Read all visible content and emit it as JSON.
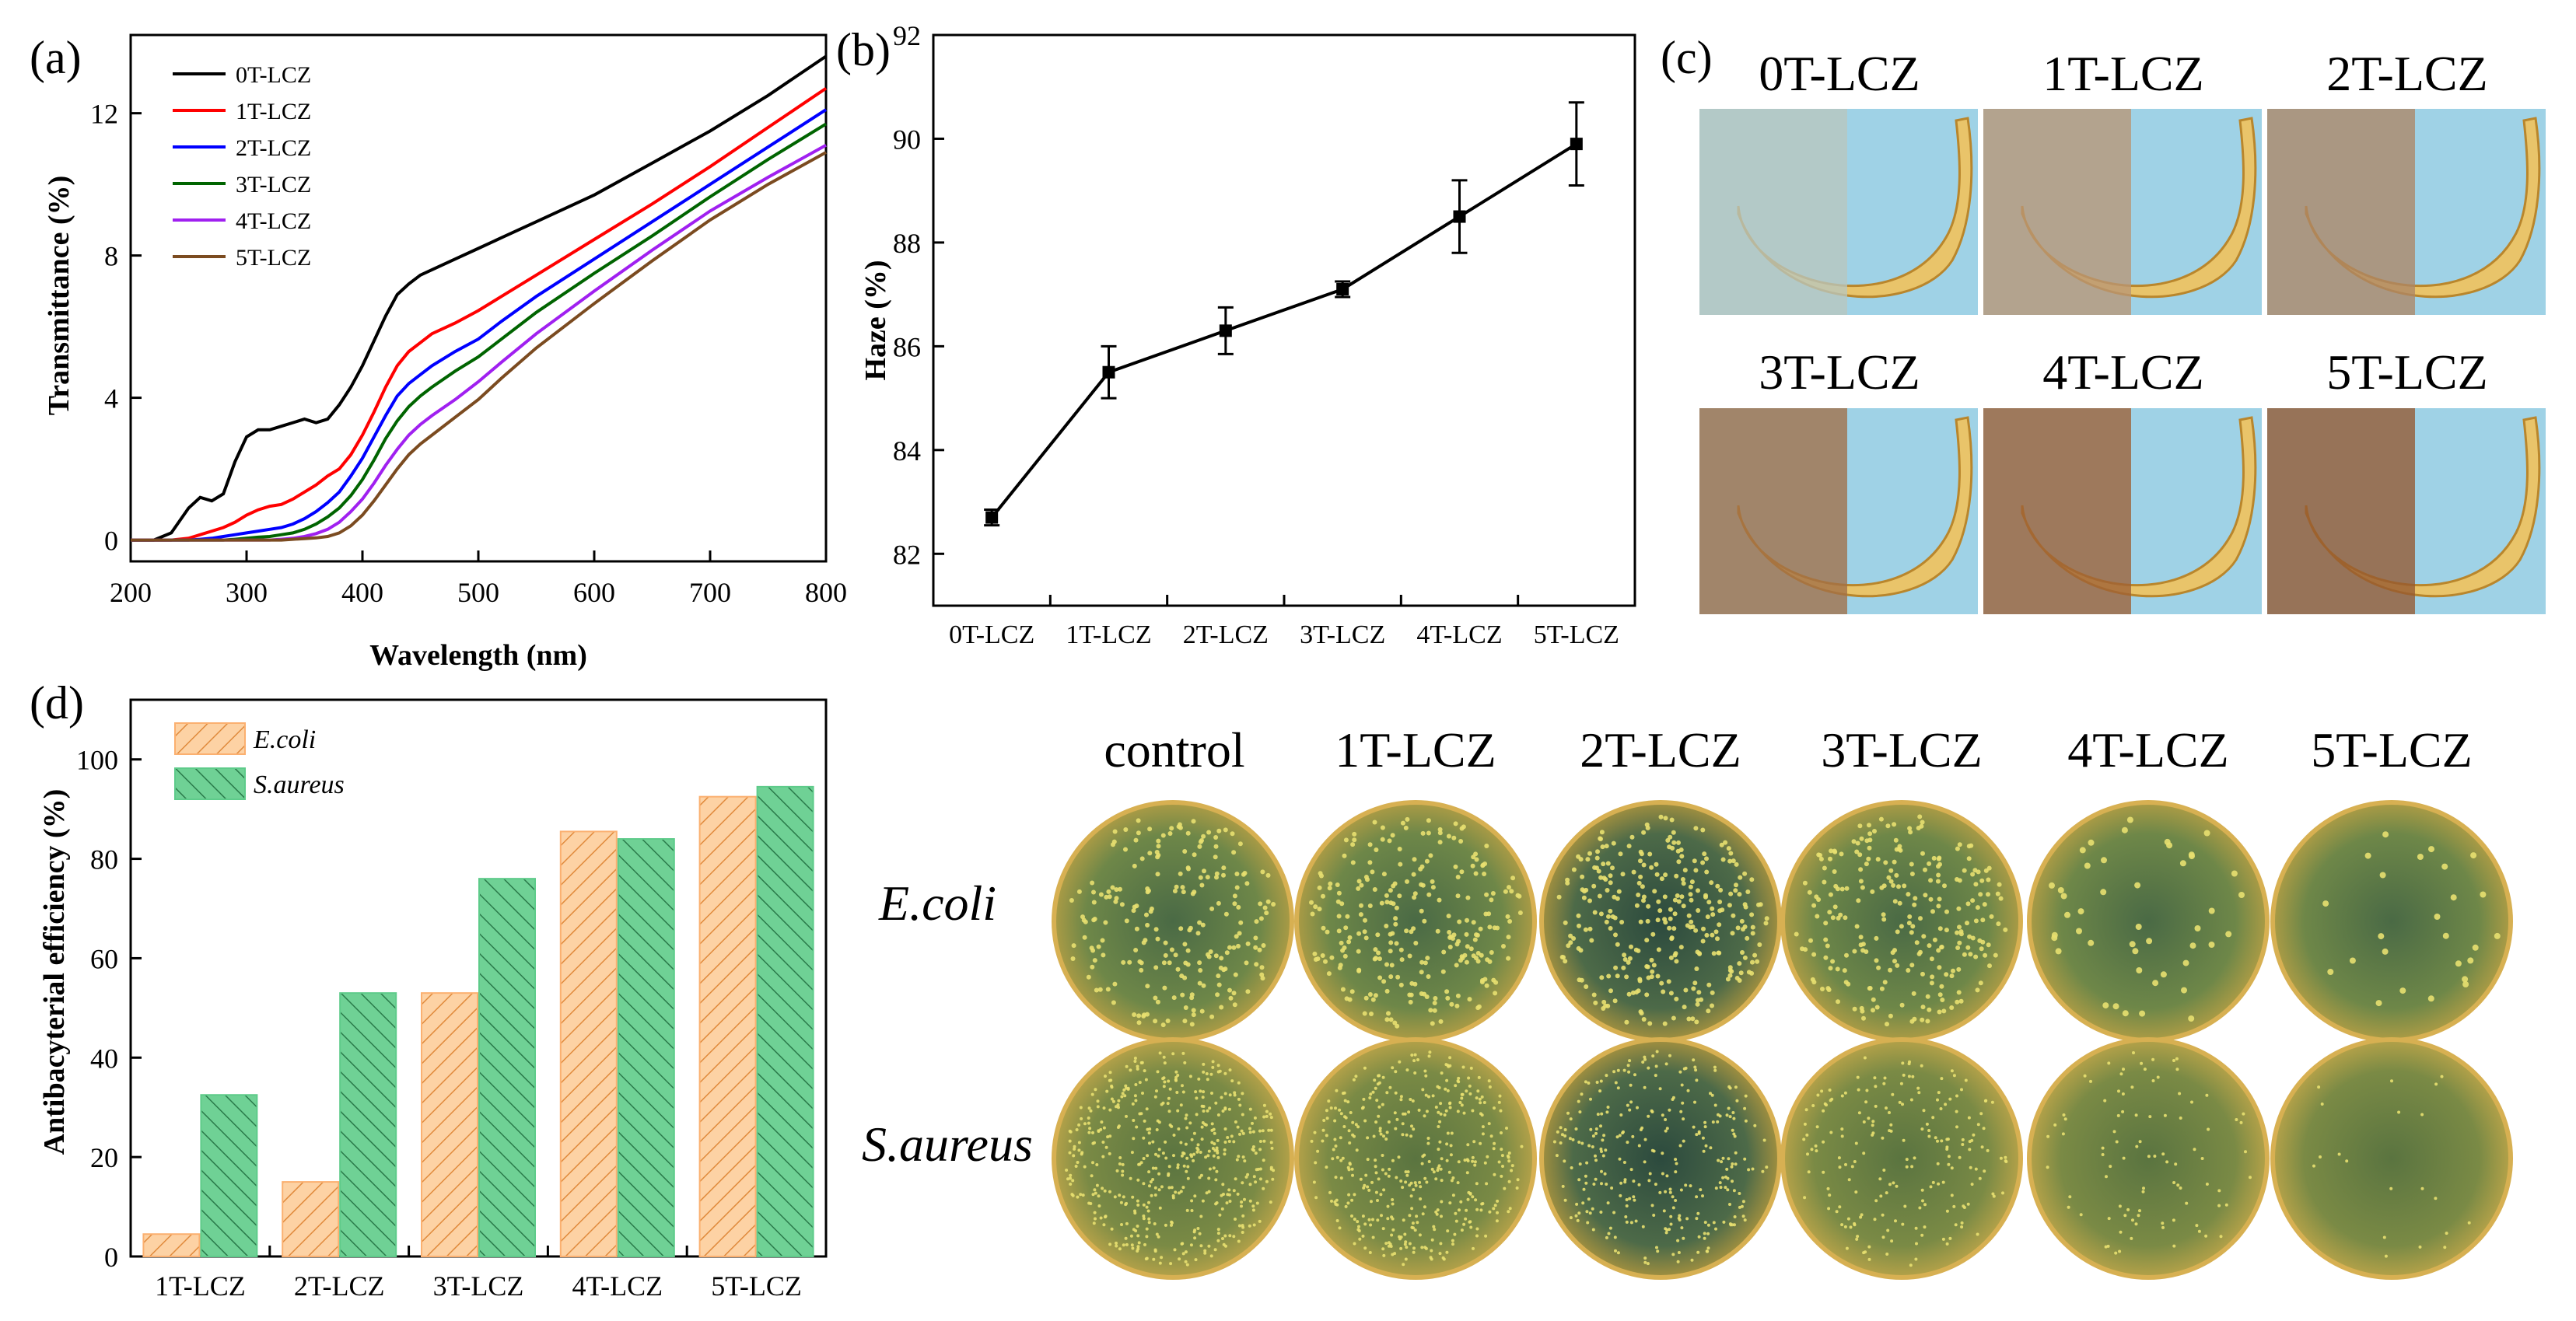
{
  "panels": {
    "a": {
      "tag": "(a)"
    },
    "b": {
      "tag": "(b)"
    },
    "c": {
      "tag": "(c)"
    },
    "d": {
      "tag": "(d)"
    }
  },
  "chart_data": [
    {
      "id": "a",
      "type": "line",
      "xlabel": "Wavelength (nm)",
      "ylabel": "Transmittance (%)",
      "xlim": [
        200,
        800
      ],
      "ylim": [
        -0.6,
        14.2
      ],
      "xticks": [
        200,
        300,
        400,
        500,
        600,
        700,
        800
      ],
      "yticks": [
        0,
        4,
        8,
        12
      ],
      "x": [
        200,
        220,
        235,
        250,
        260,
        270,
        280,
        290,
        300,
        310,
        320,
        330,
        340,
        350,
        360,
        370,
        380,
        390,
        400,
        410,
        420,
        430,
        440,
        450,
        460,
        480,
        500,
        520,
        550,
        600,
        650,
        700,
        750,
        800
      ],
      "series": [
        {
          "name": "0T-LCZ",
          "color": "#000000",
          "values": [
            0,
            0,
            0.2,
            0.9,
            1.2,
            1.1,
            1.3,
            2.2,
            2.9,
            3.1,
            3.1,
            3.2,
            3.3,
            3.4,
            3.3,
            3.4,
            3.8,
            4.3,
            4.9,
            5.6,
            6.3,
            6.9,
            7.2,
            7.45,
            7.6,
            7.9,
            8.2,
            8.5,
            8.95,
            9.7,
            10.6,
            11.5,
            12.5,
            13.6
          ]
        },
        {
          "name": "1T-LCZ",
          "color": "#ff0000",
          "values": [
            0,
            0,
            0,
            0.05,
            0.15,
            0.25,
            0.35,
            0.5,
            0.7,
            0.85,
            0.95,
            1.0,
            1.15,
            1.35,
            1.55,
            1.8,
            2.0,
            2.4,
            2.95,
            3.6,
            4.3,
            4.9,
            5.3,
            5.55,
            5.8,
            6.1,
            6.45,
            6.85,
            7.45,
            8.45,
            9.45,
            10.5,
            11.6,
            12.7
          ]
        },
        {
          "name": "2T-LCZ",
          "color": "#0000ff",
          "values": [
            0,
            0,
            0,
            0,
            0.02,
            0.05,
            0.1,
            0.15,
            0.2,
            0.25,
            0.3,
            0.35,
            0.45,
            0.6,
            0.8,
            1.05,
            1.35,
            1.8,
            2.3,
            2.9,
            3.5,
            4.05,
            4.4,
            4.65,
            4.9,
            5.3,
            5.65,
            6.15,
            6.85,
            7.9,
            8.95,
            10.0,
            11.05,
            12.1
          ]
        },
        {
          "name": "3T-LCZ",
          "color": "#006400",
          "values": [
            0,
            0,
            0,
            0,
            0,
            0,
            0,
            0.02,
            0.05,
            0.08,
            0.1,
            0.15,
            0.2,
            0.3,
            0.45,
            0.65,
            0.9,
            1.25,
            1.7,
            2.25,
            2.85,
            3.35,
            3.75,
            4.05,
            4.3,
            4.75,
            5.15,
            5.65,
            6.4,
            7.5,
            8.55,
            9.65,
            10.7,
            11.7
          ]
        },
        {
          "name": "4T-LCZ",
          "color": "#a020f0",
          "values": [
            0,
            0,
            0,
            0,
            0,
            0,
            0,
            0,
            0,
            0,
            0,
            0.02,
            0.05,
            0.1,
            0.18,
            0.3,
            0.5,
            0.8,
            1.15,
            1.6,
            2.1,
            2.55,
            2.95,
            3.25,
            3.5,
            3.95,
            4.45,
            5.0,
            5.8,
            7.0,
            8.15,
            9.25,
            10.2,
            11.1
          ]
        },
        {
          "name": "5T-LCZ",
          "color": "#7b4b20",
          "values": [
            0,
            0,
            0,
            0,
            0,
            0,
            0,
            0,
            0,
            0,
            0,
            0,
            0.02,
            0.04,
            0.06,
            0.1,
            0.2,
            0.4,
            0.7,
            1.1,
            1.55,
            2.0,
            2.4,
            2.7,
            2.95,
            3.45,
            3.95,
            4.55,
            5.4,
            6.65,
            7.85,
            9.0,
            10.0,
            10.9
          ]
        }
      ]
    },
    {
      "id": "b",
      "type": "line",
      "xlabel": "",
      "ylabel": "Haze (%)",
      "ylim": [
        81,
        92
      ],
      "yticks": [
        82,
        84,
        86,
        88,
        90,
        92
      ],
      "categories": [
        "0T-LCZ",
        "1T-LCZ",
        "2T-LCZ",
        "3T-LCZ",
        "4T-LCZ",
        "5T-LCZ"
      ],
      "values": [
        82.7,
        85.5,
        86.3,
        87.1,
        88.5,
        89.9
      ],
      "errors": [
        0.15,
        0.5,
        0.45,
        0.15,
        0.7,
        0.8
      ]
    },
    {
      "id": "d",
      "type": "bar",
      "xlabel": "",
      "ylabel": "Antibacyterial efficiency (%)",
      "ylim": [
        0,
        112
      ],
      "yticks": [
        0,
        20,
        40,
        60,
        80,
        100
      ],
      "categories": [
        "1T-LCZ",
        "2T-LCZ",
        "3T-LCZ",
        "4T-LCZ",
        "5T-LCZ"
      ],
      "series": [
        {
          "name": "E.coli",
          "color": "#fbb070",
          "values": [
            4.5,
            15,
            53,
            85.5,
            92.5
          ]
        },
        {
          "name": "S.aureus",
          "color": "#5ecb8a",
          "values": [
            32.5,
            53,
            76,
            84,
            94.5
          ]
        }
      ]
    }
  ],
  "banana_photos": {
    "labels": [
      "0T-LCZ",
      "1T-LCZ",
      "2T-LCZ",
      "3T-LCZ",
      "4T-LCZ",
      "5T-LCZ"
    ],
    "film_colors": [
      "#b9c6be",
      "#b89674",
      "#ad8765",
      "#a26f47",
      "#9d6035",
      "#95592f"
    ],
    "background_color": "#9fd2e6"
  },
  "petri": {
    "column_labels": [
      "control",
      "1T-LCZ",
      "2T-LCZ",
      "3T-LCZ",
      "4T-LCZ",
      "5T-LCZ"
    ],
    "row_labels": [
      "E.coli",
      "S.aureus"
    ]
  }
}
